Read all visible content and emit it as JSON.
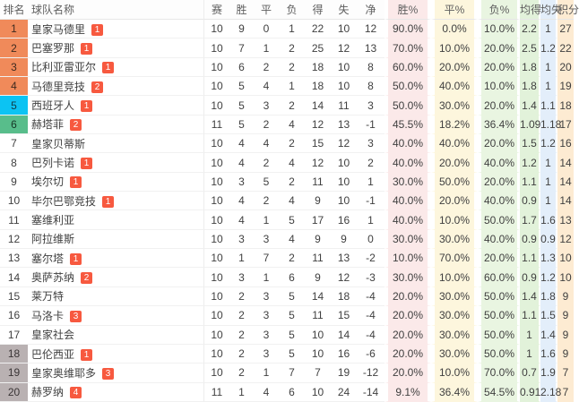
{
  "table": {
    "headers": [
      {
        "key": "rank",
        "label": "排名"
      },
      {
        "key": "team",
        "label": "球队名称"
      },
      {
        "key": "played",
        "label": "赛"
      },
      {
        "key": "win",
        "label": "胜"
      },
      {
        "key": "draw",
        "label": "平"
      },
      {
        "key": "loss",
        "label": "负"
      },
      {
        "key": "gf",
        "label": "得"
      },
      {
        "key": "ga",
        "label": "失"
      },
      {
        "key": "gd",
        "label": "净"
      },
      {
        "key": "win_pct",
        "label": "胜%"
      },
      {
        "key": "draw_pct",
        "label": "平%"
      },
      {
        "key": "loss_pct",
        "label": "负%"
      },
      {
        "key": "avg_gf",
        "label": "均得"
      },
      {
        "key": "avg_ga",
        "label": "均失"
      },
      {
        "key": "pts",
        "label": "积分"
      }
    ],
    "rows": [
      {
        "rank": 1,
        "zone": "champions",
        "team": "皇家马德里",
        "badge": "1",
        "played": 10,
        "win": 9,
        "draw": 0,
        "loss": 1,
        "gf": 22,
        "ga": 10,
        "gd": 12,
        "win_pct": "90.0%",
        "draw_pct": "0.0%",
        "loss_pct": "10.0%",
        "avg_gf": "2.2",
        "avg_ga": "1",
        "pts": 27
      },
      {
        "rank": 2,
        "zone": "champions",
        "team": "巴塞罗那",
        "badge": "1",
        "played": 10,
        "win": 7,
        "draw": 1,
        "loss": 2,
        "gf": 25,
        "ga": 12,
        "gd": 13,
        "win_pct": "70.0%",
        "draw_pct": "10.0%",
        "loss_pct": "20.0%",
        "avg_gf": "2.5",
        "avg_ga": "1.2",
        "pts": 22
      },
      {
        "rank": 3,
        "zone": "champions",
        "team": "比利亚雷亚尔",
        "badge": "1",
        "played": 10,
        "win": 6,
        "draw": 2,
        "loss": 2,
        "gf": 18,
        "ga": 10,
        "gd": 8,
        "win_pct": "60.0%",
        "draw_pct": "20.0%",
        "loss_pct": "20.0%",
        "avg_gf": "1.8",
        "avg_ga": "1",
        "pts": 20
      },
      {
        "rank": 4,
        "zone": "champions",
        "team": "马德里竞技",
        "badge": "2",
        "played": 10,
        "win": 5,
        "draw": 4,
        "loss": 1,
        "gf": 18,
        "ga": 10,
        "gd": 8,
        "win_pct": "50.0%",
        "draw_pct": "40.0%",
        "loss_pct": "10.0%",
        "avg_gf": "1.8",
        "avg_ga": "1",
        "pts": 19
      },
      {
        "rank": 5,
        "zone": "europa",
        "team": "西班牙人",
        "badge": "1",
        "played": 10,
        "win": 5,
        "draw": 3,
        "loss": 2,
        "gf": 14,
        "ga": 11,
        "gd": 3,
        "win_pct": "50.0%",
        "draw_pct": "30.0%",
        "loss_pct": "20.0%",
        "avg_gf": "1.4",
        "avg_ga": "1.1",
        "pts": 18
      },
      {
        "rank": 6,
        "zone": "conference",
        "team": "赫塔菲",
        "badge": "2",
        "played": 11,
        "win": 5,
        "draw": 2,
        "loss": 4,
        "gf": 12,
        "ga": 13,
        "gd": -1,
        "win_pct": "45.5%",
        "draw_pct": "18.2%",
        "loss_pct": "36.4%",
        "avg_gf": "1.09",
        "avg_ga": "1.18",
        "pts": 17
      },
      {
        "rank": 7,
        "zone": "none",
        "team": "皇家贝蒂斯",
        "badge": null,
        "played": 10,
        "win": 4,
        "draw": 4,
        "loss": 2,
        "gf": 15,
        "ga": 12,
        "gd": 3,
        "win_pct": "40.0%",
        "draw_pct": "40.0%",
        "loss_pct": "20.0%",
        "avg_gf": "1.5",
        "avg_ga": "1.2",
        "pts": 16
      },
      {
        "rank": 8,
        "zone": "none",
        "team": "巴列卡诺",
        "badge": "1",
        "played": 10,
        "win": 4,
        "draw": 2,
        "loss": 4,
        "gf": 12,
        "ga": 10,
        "gd": 2,
        "win_pct": "40.0%",
        "draw_pct": "20.0%",
        "loss_pct": "40.0%",
        "avg_gf": "1.2",
        "avg_ga": "1",
        "pts": 14
      },
      {
        "rank": 9,
        "zone": "none",
        "team": "埃尔切",
        "badge": "1",
        "played": 10,
        "win": 3,
        "draw": 5,
        "loss": 2,
        "gf": 11,
        "ga": 10,
        "gd": 1,
        "win_pct": "30.0%",
        "draw_pct": "50.0%",
        "loss_pct": "20.0%",
        "avg_gf": "1.1",
        "avg_ga": "1",
        "pts": 14
      },
      {
        "rank": 10,
        "zone": "none",
        "team": "毕尔巴鄂竞技",
        "badge": "1",
        "played": 10,
        "win": 4,
        "draw": 2,
        "loss": 4,
        "gf": 9,
        "ga": 10,
        "gd": -1,
        "win_pct": "40.0%",
        "draw_pct": "20.0%",
        "loss_pct": "40.0%",
        "avg_gf": "0.9",
        "avg_ga": "1",
        "pts": 14
      },
      {
        "rank": 11,
        "zone": "none",
        "team": "塞维利亚",
        "badge": null,
        "played": 10,
        "win": 4,
        "draw": 1,
        "loss": 5,
        "gf": 17,
        "ga": 16,
        "gd": 1,
        "win_pct": "40.0%",
        "draw_pct": "10.0%",
        "loss_pct": "50.0%",
        "avg_gf": "1.7",
        "avg_ga": "1.6",
        "pts": 13
      },
      {
        "rank": 12,
        "zone": "none",
        "team": "阿拉维斯",
        "badge": null,
        "played": 10,
        "win": 3,
        "draw": 3,
        "loss": 4,
        "gf": 9,
        "ga": 9,
        "gd": 0,
        "win_pct": "30.0%",
        "draw_pct": "30.0%",
        "loss_pct": "40.0%",
        "avg_gf": "0.9",
        "avg_ga": "0.9",
        "pts": 12
      },
      {
        "rank": 13,
        "zone": "none",
        "team": "塞尔塔",
        "badge": "1",
        "played": 10,
        "win": 1,
        "draw": 7,
        "loss": 2,
        "gf": 11,
        "ga": 13,
        "gd": -2,
        "win_pct": "10.0%",
        "draw_pct": "70.0%",
        "loss_pct": "20.0%",
        "avg_gf": "1.1",
        "avg_ga": "1.3",
        "pts": 10
      },
      {
        "rank": 14,
        "zone": "none",
        "team": "奥萨苏纳",
        "badge": "2",
        "played": 10,
        "win": 3,
        "draw": 1,
        "loss": 6,
        "gf": 9,
        "ga": 12,
        "gd": -3,
        "win_pct": "30.0%",
        "draw_pct": "10.0%",
        "loss_pct": "60.0%",
        "avg_gf": "0.9",
        "avg_ga": "1.2",
        "pts": 10
      },
      {
        "rank": 15,
        "zone": "none",
        "team": "莱万特",
        "badge": null,
        "played": 10,
        "win": 2,
        "draw": 3,
        "loss": 5,
        "gf": 14,
        "ga": 18,
        "gd": -4,
        "win_pct": "20.0%",
        "draw_pct": "30.0%",
        "loss_pct": "50.0%",
        "avg_gf": "1.4",
        "avg_ga": "1.8",
        "pts": 9
      },
      {
        "rank": 16,
        "zone": "none",
        "team": "马洛卡",
        "badge": "3",
        "played": 10,
        "win": 2,
        "draw": 3,
        "loss": 5,
        "gf": 11,
        "ga": 15,
        "gd": -4,
        "win_pct": "20.0%",
        "draw_pct": "30.0%",
        "loss_pct": "50.0%",
        "avg_gf": "1.1",
        "avg_ga": "1.5",
        "pts": 9
      },
      {
        "rank": 17,
        "zone": "none",
        "team": "皇家社会",
        "badge": null,
        "played": 10,
        "win": 2,
        "draw": 3,
        "loss": 5,
        "gf": 10,
        "ga": 14,
        "gd": -4,
        "win_pct": "20.0%",
        "draw_pct": "30.0%",
        "loss_pct": "50.0%",
        "avg_gf": "1",
        "avg_ga": "1.4",
        "pts": 9
      },
      {
        "rank": 18,
        "zone": "relegation",
        "team": "巴伦西亚",
        "badge": "1",
        "played": 10,
        "win": 2,
        "draw": 3,
        "loss": 5,
        "gf": 10,
        "ga": 16,
        "gd": -6,
        "win_pct": "20.0%",
        "draw_pct": "30.0%",
        "loss_pct": "50.0%",
        "avg_gf": "1",
        "avg_ga": "1.6",
        "pts": 9
      },
      {
        "rank": 19,
        "zone": "relegation",
        "team": "皇家奥维耶多",
        "badge": "3",
        "played": 10,
        "win": 2,
        "draw": 1,
        "loss": 7,
        "gf": 7,
        "ga": 19,
        "gd": -12,
        "win_pct": "20.0%",
        "draw_pct": "10.0%",
        "loss_pct": "70.0%",
        "avg_gf": "0.7",
        "avg_ga": "1.9",
        "pts": 7
      },
      {
        "rank": 20,
        "zone": "relegation",
        "team": "赫罗纳",
        "badge": "4",
        "played": 11,
        "win": 1,
        "draw": 4,
        "loss": 6,
        "gf": 10,
        "ga": 24,
        "gd": -14,
        "win_pct": "9.1%",
        "draw_pct": "36.4%",
        "loss_pct": "54.5%",
        "avg_gf": "0.91",
        "avg_ga": "2.18",
        "pts": 7
      }
    ]
  },
  "colors": {
    "zone_champions": "#f08a5a",
    "zone_europa": "#0cc3f3",
    "zone_conference": "#58bd8b",
    "zone_relegation": "#b9b1b2",
    "badge": "#f7593f",
    "col_win_pct": "#fbe9e9",
    "col_draw_pct": "#fdf6dd",
    "col_loss_pct": "#e9f5e1",
    "col_avg_gf": "#e2f2da",
    "col_avg_ga": "#e3eefa",
    "col_pts": "#fdebd2"
  }
}
